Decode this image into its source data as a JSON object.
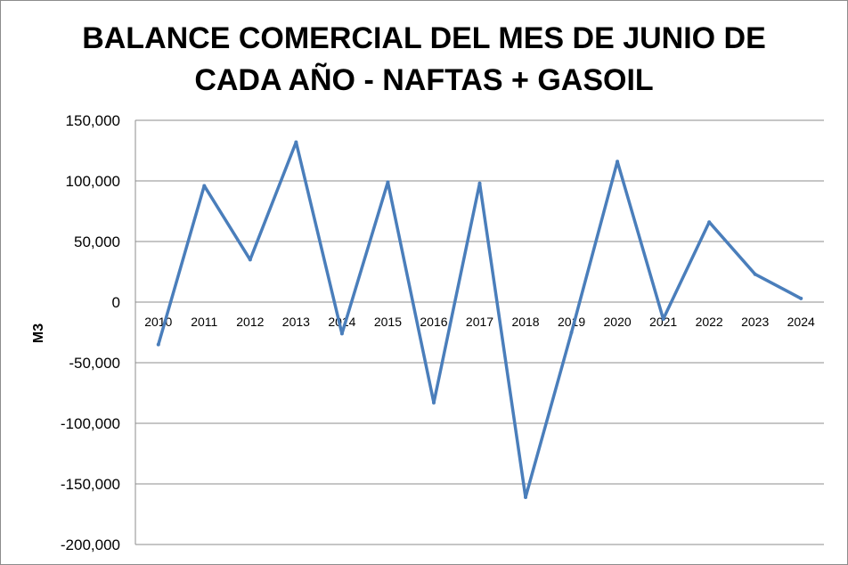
{
  "chart_data": {
    "type": "line",
    "title_lines": [
      "BALANCE COMERCIAL DEL MES DE JUNIO DE",
      "CADA AÑO - NAFTAS + GASOIL"
    ],
    "xlabel": "",
    "ylabel": "M3",
    "ylim": [
      -200000,
      150000
    ],
    "yticks": [
      150000,
      100000,
      50000,
      0,
      -50000,
      -100000,
      -150000,
      -200000
    ],
    "ytick_labels": [
      "150,000",
      "100,000",
      "50,000",
      "0",
      "-50,000",
      "-100,000",
      "-150,000",
      "-200,000"
    ],
    "grid": true,
    "legend": "none",
    "categories": [
      "2010",
      "2011",
      "2012",
      "2013",
      "2014",
      "2015",
      "2016",
      "2017",
      "2018",
      "2019",
      "2020",
      "2021",
      "2022",
      "2023",
      "2024"
    ],
    "series": [
      {
        "values": [
          -35000,
          96000,
          35000,
          132000,
          -26000,
          99000,
          -83000,
          98000,
          -161000,
          -25000,
          116000,
          -14000,
          66000,
          23000,
          3000
        ],
        "color": "#4a7ebb"
      }
    ]
  }
}
